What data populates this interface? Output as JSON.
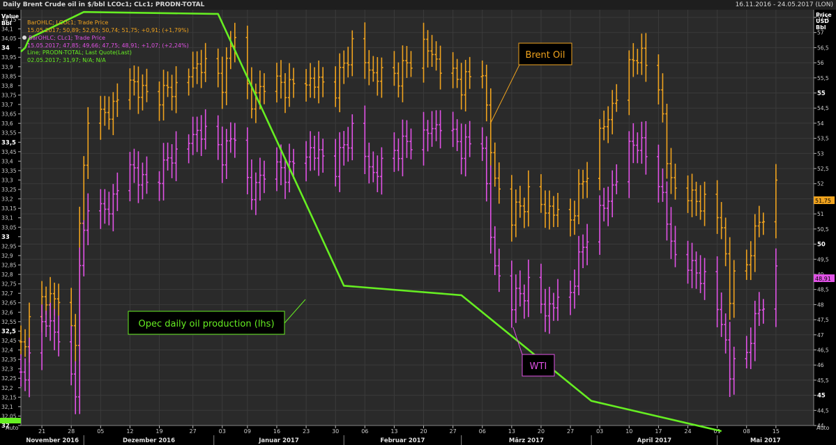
{
  "window": {
    "title": "Daily Brent Crude oil in $/bbl LCOc1; CLc1; PRODN-TOTAL",
    "date_range": "16.11.2016 - 24.05.2017 (LON)"
  },
  "axes": {
    "left_header": [
      "Value",
      "Bbl"
    ],
    "right_header": [
      "Price",
      "USD",
      "Bbl"
    ],
    "left_ticks": [
      "32",
      "32,05",
      "32,1",
      "32,15",
      "32,2",
      "32,25",
      "32,3",
      "32,35",
      "32,4",
      "32,45",
      "32,5",
      "32,55",
      "32,6",
      "32,65",
      "32,7",
      "32,75",
      "32,8",
      "32,85",
      "32,9",
      "32,95",
      "33",
      "33,05",
      "33,1",
      "33,15",
      "33,2",
      "33,25",
      "33,3",
      "33,35",
      "33,4",
      "33,45",
      "33,5",
      "33,55",
      "33,6",
      "33,65",
      "33,7",
      "33,75",
      "33,8",
      "33,85",
      "33,9",
      "33,95",
      "34",
      "34,05",
      "34,1",
      "34,15"
    ],
    "left_bold": [
      "32",
      "32,5",
      "33",
      "33,5",
      "34"
    ],
    "right_ticks": [
      "44",
      "44,5",
      "45",
      "45,5",
      "46",
      "46,5",
      "47",
      "47,5",
      "48",
      "48,5",
      "49",
      "49,5",
      "50",
      "50,5",
      "51",
      "51,5",
      "52",
      "52,5",
      "53",
      "53,5",
      "54",
      "54,5",
      "55",
      "55,5",
      "56",
      "56,5",
      "57",
      "57,5"
    ],
    "right_bold": [
      "45",
      "50",
      "55"
    ],
    "day_ticks": [
      "21",
      "28",
      "05",
      "12",
      "19",
      "27",
      "03",
      "09",
      "16",
      "23",
      "30",
      "06",
      "13",
      "20",
      "27",
      "06",
      "13",
      "20",
      "27",
      "03",
      "10",
      "17",
      "24",
      "01",
      "08",
      "15"
    ],
    "months": [
      "November 2016",
      "Dezember 2016",
      "Januar 2017",
      "Februar 2017",
      "März 2017",
      "April 2017",
      "Mai 2017"
    ],
    "left_auto": "Auto",
    "right_auto": "Auto"
  },
  "legend": {
    "brent_line1": "BarOHLC; LCOc1; Trade Price",
    "brent_line2": "15.05.2017; 50,89; 52,63; 50,74; 51,75; +0,91; (+1,79%)",
    "wti_line1": "BarOHLC; CLc1; Trade Price",
    "wti_line2": "15.05.2017; 47,85; 49,66; 47,75; 48,91; +1,07; (+2,24%)",
    "opec_line1": "Line; PRODN-TOTAL; Last Quote(Last)",
    "opec_line2": "02.05.2017; 31,97; N/A; N/A"
  },
  "annotations": {
    "brent": "Brent Oil",
    "wti": "WTI",
    "opec": "Opec daily oil production (lhs)"
  },
  "badges": {
    "brent_last": "51,75",
    "wti_last": "48,91"
  },
  "colors": {
    "brent": "#f0a31e",
    "wti": "#e152e6",
    "opec": "#66ee22",
    "grid": "#3b3b3b",
    "plot_bg": "#2a2a2a"
  },
  "chart_data": {
    "type": "line",
    "title": "Daily Brent Crude oil in $/bbl LCOc1; CLc1; PRODN-TOTAL",
    "x_range": [
      "16.11.2016",
      "24.05.2017"
    ],
    "left_axis": {
      "unit": "Value / Bbl",
      "ylim": [
        32.0,
        34.15
      ]
    },
    "right_axis": {
      "unit": "Price USD / Bbl",
      "ylim": [
        44.0,
        57.5
      ]
    },
    "series": [
      {
        "name": "PRODN-TOTAL",
        "axis": "left",
        "x": [
          "16.11.2016",
          "17.11.2016",
          "18.11.2016",
          "01.12.2016",
          "01.01.2017",
          "02.01.2017",
          "01.02.2017",
          "01.03.2017",
          "01.04.2017",
          "02.05.2017"
        ],
        "values": [
          33.98,
          34.0,
          34.05,
          34.19,
          34.18,
          34.18,
          32.74,
          32.69,
          32.13,
          31.97
        ]
      },
      {
        "name": "LCOc1",
        "axis": "right",
        "ohlc_close_sample": {
          "x": [
            "16.11.2016",
            "18.11.2016",
            "22.11.2016",
            "25.11.2016",
            "29.11.2016",
            "30.11.2016",
            "02.12.2016",
            "06.12.2016",
            "12.12.2016",
            "16.12.2016",
            "22.12.2016",
            "29.12.2016",
            "03.01.2017",
            "06.01.2017",
            "10.01.2017",
            "13.01.2017",
            "18.01.2017",
            "24.01.2017",
            "30.01.2017",
            "03.02.2017",
            "08.02.2017",
            "14.02.2017",
            "20.02.2017",
            "24.02.2017",
            "01.03.2017",
            "06.03.2017",
            "08.03.2017",
            "09.03.2017",
            "13.03.2017",
            "17.03.2017",
            "21.03.2017",
            "27.03.2017",
            "31.03.2017",
            "04.04.2017",
            "10.04.2017",
            "12.04.2017",
            "17.04.2017",
            "19.04.2017",
            "21.04.2017",
            "27.04.2017",
            "02.05.2017",
            "04.05.2017",
            "05.05.2017",
            "08.05.2017",
            "11.05.2017",
            "15.05.2017"
          ],
          "values": [
            46.6,
            47.4,
            48.3,
            48.1,
            46.9,
            50.5,
            54.4,
            54.2,
            55.4,
            54.9,
            55.1,
            56.0,
            55.4,
            57.0,
            54.6,
            55.4,
            55.2,
            55.4,
            55.2,
            56.6,
            55.6,
            55.6,
            56.6,
            55.9,
            55.3,
            55.8,
            53.1,
            52.1,
            50.9,
            51.6,
            51.2,
            50.8,
            52.5,
            53.9,
            55.9,
            56.3,
            55.4,
            52.7,
            51.8,
            51.4,
            50.8,
            48.1,
            49.1,
            49.3,
            50.8,
            51.75
          ]
        }
      },
      {
        "name": "CLc1",
        "axis": "right",
        "ohlc_close_sample": {
          "x": [
            "16.11.2016",
            "18.11.2016",
            "22.11.2016",
            "25.11.2016",
            "29.11.2016",
            "30.11.2016",
            "02.12.2016",
            "06.12.2016",
            "12.12.2016",
            "16.12.2016",
            "22.12.2016",
            "29.12.2016",
            "03.01.2017",
            "06.01.2017",
            "10.01.2017",
            "13.01.2017",
            "18.01.2017",
            "24.01.2017",
            "30.01.2017",
            "03.02.2017",
            "08.02.2017",
            "14.02.2017",
            "20.02.2017",
            "24.02.2017",
            "01.03.2017",
            "06.03.2017",
            "08.03.2017",
            "09.03.2017",
            "13.03.2017",
            "17.03.2017",
            "21.03.2017",
            "27.03.2017",
            "31.03.2017",
            "04.04.2017",
            "10.04.2017",
            "12.04.2017",
            "17.04.2017",
            "19.04.2017",
            "21.04.2017",
            "27.04.2017",
            "02.05.2017",
            "04.05.2017",
            "05.05.2017",
            "08.05.2017",
            "11.05.2017",
            "15.05.2017"
          ],
          "values": [
            45.6,
            46.2,
            47.6,
            46.8,
            45.2,
            49.1,
            51.5,
            51.0,
            52.6,
            51.9,
            52.9,
            53.8,
            53.0,
            53.6,
            51.6,
            52.5,
            52.4,
            53.1,
            52.6,
            53.8,
            52.3,
            53.2,
            53.6,
            54.0,
            53.2,
            53.4,
            50.3,
            49.2,
            48.1,
            48.6,
            47.8,
            48.4,
            50.4,
            51.2,
            53.2,
            53.4,
            52.2,
            50.7,
            49.6,
            49.0,
            47.6,
            45.6,
            46.2,
            46.4,
            47.9,
            48.91
          ]
        }
      }
    ],
    "annotations": [
      "Brent Oil",
      "WTI",
      "Opec daily oil production (lhs)"
    ],
    "legend_position": "top-left",
    "grid": true
  }
}
